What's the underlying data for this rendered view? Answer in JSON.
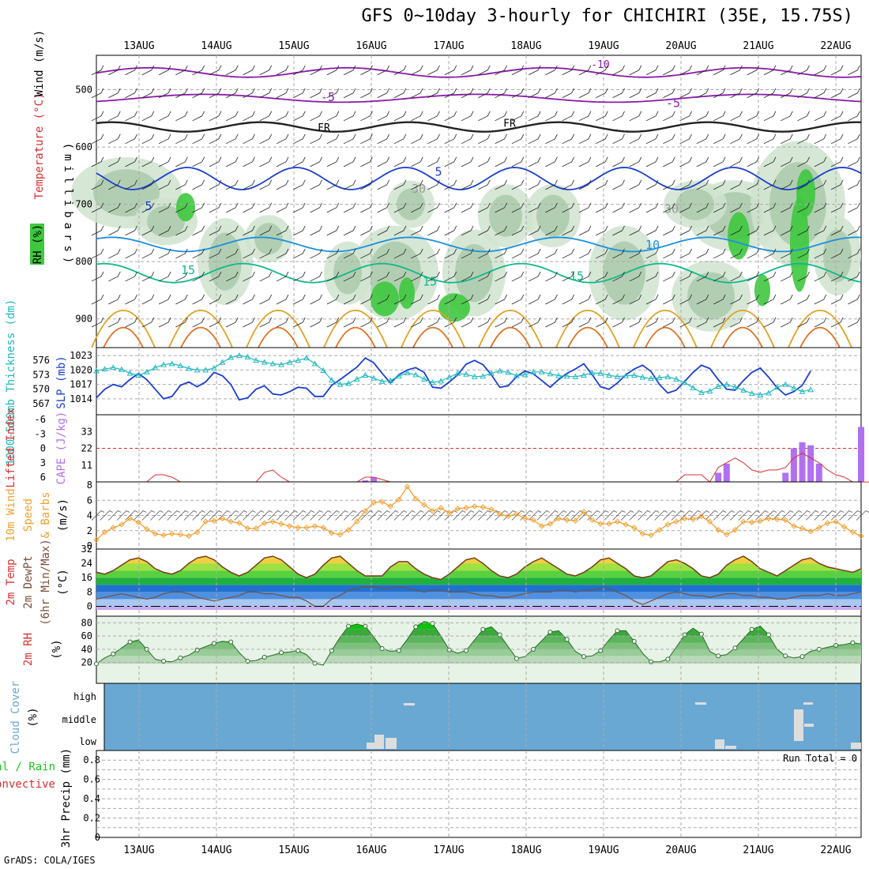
{
  "title": "GFS 0~10day 3-hourly for CHICHIRI (35E, 15.75S)",
  "credit": "GrADS: COLA/IGES",
  "colors": {
    "temp_warm": "#e07020",
    "temp_hot": "#e0a020",
    "rh_green": "#20c020",
    "slp": "#1a3fd0",
    "thickness": "#20b8c0",
    "cape": "#b070f0",
    "li": "#d83030",
    "wind": "#f0a030",
    "dew": "#7a4f3a",
    "rh2m": "#3a9a3a",
    "cloud": "#6aa8d4"
  },
  "chart_data": [
    {
      "id": "upper-air",
      "type": "heatmap",
      "ylabel": "(millibars)",
      "y_ticks": [
        "500",
        "600",
        "700",
        "800",
        "900"
      ],
      "ylim": [
        950,
        440
      ],
      "legend_left": {
        "rh": "RH (%)",
        "temp": "Temperature (°C)",
        "wind": "Wind (m/s)"
      },
      "contour_labels": [
        "-10",
        "-5",
        "-5",
        "FR",
        "FR",
        "5",
        "5",
        "10",
        "15",
        "15",
        "15",
        "30",
        "30"
      ],
      "dates": [
        "13AUG",
        "14AUG",
        "15AUG",
        "16AUG",
        "17AUG",
        "18AUG",
        "19AUG",
        "20AUG",
        "21AUG",
        "22AUG"
      ]
    },
    {
      "id": "slp-thickness",
      "type": "line",
      "left_label": "1000-500mb Thickness (dm)",
      "right_label": "SLP (mb)",
      "left_ticks": [
        "567",
        "570",
        "573",
        "576"
      ],
      "right_ticks": [
        "1014",
        "1017",
        "1020",
        "1023"
      ],
      "series": [
        {
          "name": "SLP (mb)",
          "values": [
            1014.2,
            1016,
            1017,
            1016.5,
            1018,
            1019.3,
            1018,
            1016,
            1014,
            1014.5,
            1016.8,
            1017.5,
            1016.5,
            1017.5,
            1019.5,
            1018.8,
            1017,
            1013.8,
            1014.2,
            1016,
            1016.7,
            1015,
            1014.8,
            1015.5,
            1016.4,
            1016.2,
            1014.5,
            1014.5,
            1016.8,
            1018,
            1019.3,
            1020.6,
            1022.5,
            1021.5,
            1019.3,
            1017.3,
            1019,
            1020,
            1020.5,
            1019.5,
            1016.4,
            1016.2,
            1017.5,
            1019,
            1021.2,
            1022,
            1021.1,
            1019,
            1016.4,
            1016.7,
            1018.6,
            1019.8,
            1019.2,
            1017.8,
            1016.4,
            1018,
            1019.3,
            1020.2,
            1021.3,
            1019,
            1016.5,
            1016,
            1017.3,
            1019,
            1020.2,
            1021,
            1019.7,
            1017,
            1015.2,
            1015.8,
            1017.6,
            1019.5,
            1021,
            1020.3,
            1018,
            1016,
            1015.8,
            1017.8,
            1019.5,
            1020.4,
            1018.5,
            1016.3,
            1014.8,
            1015.5,
            1016.8,
            1019.8
          ]
        },
        {
          "name": "1000-500mb Thickness (dm)",
          "values": [
            573.8,
            574.2,
            574.5,
            574.1,
            573.3,
            572.9,
            573.6,
            574.5,
            575.1,
            575.3,
            574.9,
            574.3,
            574.0,
            574.0,
            574.4,
            575.6,
            576.6,
            577.0,
            576.7,
            576.0,
            575.6,
            575.3,
            575.1,
            575.6,
            576.0,
            576.5,
            575.3,
            573.9,
            571.9,
            571.0,
            571.2,
            572.1,
            572.9,
            572.3,
            571.6,
            571.8,
            572.7,
            573.4,
            573.0,
            572.1,
            571.4,
            571.7,
            572.5,
            573.3,
            573.1,
            572.6,
            572.7,
            573.3,
            573.8,
            573.5,
            572.8,
            573.0,
            573.6,
            573.6,
            573.2,
            572.8,
            572.7,
            572.6,
            572.9,
            573.4,
            573.3,
            572.9,
            572.6,
            572.8,
            572.9,
            572.5,
            572.2,
            572.4,
            572.6,
            572.1,
            571.4,
            570.3,
            569.3,
            569.6,
            570.6,
            571.0,
            570.4,
            569.8,
            569.1,
            568.8,
            569.2,
            570.4,
            571.0,
            570.2,
            569.5,
            569.9
          ]
        }
      ]
    },
    {
      "id": "cape-li",
      "type": "bar",
      "left_label": "Lifted Index",
      "right_label": "CAPE (J/kg)",
      "left_ticks": [
        "-6",
        "-3",
        "0",
        "3",
        "6"
      ],
      "right_ticks": [
        "11",
        "22",
        "33"
      ],
      "series": [
        {
          "name": "CAPE (J/kg)",
          "values": [
            0,
            0,
            0,
            0,
            0,
            0,
            0,
            0,
            0,
            0,
            0,
            0,
            0,
            0,
            0,
            0,
            0,
            0,
            0,
            0,
            0,
            0,
            0,
            0,
            0,
            0,
            0,
            0,
            0,
            0,
            0,
            0,
            1,
            3,
            0,
            0,
            0,
            0,
            0,
            0,
            0,
            0,
            0,
            0,
            0,
            0,
            0,
            0,
            0,
            0,
            0,
            0,
            0,
            0,
            0,
            0,
            0,
            0,
            0,
            0,
            0,
            0,
            0,
            0,
            0,
            0,
            0,
            0,
            0,
            0,
            0,
            0,
            0,
            0,
            6,
            12,
            0,
            0,
            0,
            0,
            0,
            0,
            6,
            22,
            26,
            24,
            12,
            0,
            0,
            0,
            0,
            36
          ]
        },
        {
          "name": "Lifted Index",
          "values": [
            7,
            7,
            7,
            7,
            7,
            7,
            7,
            5.5,
            5.5,
            6,
            7,
            7,
            7,
            7,
            7,
            7,
            7,
            7,
            7,
            7,
            5,
            4.5,
            6,
            7,
            7,
            7,
            7,
            7,
            7,
            7,
            7,
            7,
            6,
            6,
            6.5,
            7,
            7,
            7,
            7,
            7,
            7,
            7,
            7,
            7,
            7,
            7,
            7,
            7,
            7,
            7,
            7,
            7,
            7,
            7,
            7,
            7,
            7,
            7,
            7,
            7,
            7,
            7,
            7,
            7,
            7,
            7,
            7,
            7,
            7,
            7,
            5.5,
            5.5,
            5.5,
            7,
            4,
            3,
            2,
            3,
            4.5,
            5,
            4.5,
            4.5,
            4,
            2,
            1,
            2,
            3,
            4.5,
            5.5,
            6,
            7,
            7,
            7,
            4
          ]
        }
      ]
    },
    {
      "id": "wind10m",
      "type": "line",
      "left_label": "10m Wind Speed & Barbs (m/s)",
      "y_ticks": [
        "0",
        "2",
        "4",
        "6",
        "8"
      ],
      "series": [
        {
          "name": "10m Wind Speed",
          "values": [
            0.8,
            1.8,
            2.4,
            2.8,
            3.6,
            3.1,
            2.2,
            1.6,
            1.4,
            1.6,
            1.5,
            1.3,
            1.8,
            3.2,
            3.3,
            3.6,
            3.2,
            3.0,
            2.3,
            2.3,
            3.0,
            3.2,
            2.9,
            2.6,
            2.4,
            2.4,
            2.6,
            2.4,
            1.7,
            1.5,
            2.1,
            3.2,
            4.6,
            5.7,
            5.8,
            5.2,
            6.1,
            7.8,
            6.2,
            5.4,
            4.6,
            5.0,
            4.3,
            4.9,
            5.0,
            5.2,
            5.1,
            4.8,
            4.2,
            3.9,
            4.2,
            3.6,
            3.4,
            2.6,
            2.9,
            3.6,
            3.4,
            3.3,
            4.5,
            3.4,
            2.9,
            2.9,
            3.2,
            2.8,
            2.4,
            1.6,
            1.4,
            2.1,
            2.8,
            3.2,
            3.6,
            3.5,
            3.9,
            3.2,
            2.1,
            1.5,
            2.1,
            3.2,
            3.1,
            3.3,
            3.6,
            3.5,
            3.4,
            2.6,
            2.3,
            1.9,
            2.4,
            3.0,
            3.2,
            2.5,
            1.8,
            1.3
          ]
        }
      ]
    },
    {
      "id": "temp2m",
      "type": "area",
      "left_label": "2m Temp 2m DewPt (6hr Min/Max) (°C)",
      "y_ticks": [
        "0",
        "8",
        "16",
        "24",
        "32"
      ],
      "series": [
        {
          "name": "2m Temp",
          "values": [
            19,
            18,
            20,
            23,
            26,
            27,
            25,
            21,
            19,
            18,
            20,
            24,
            27,
            28,
            26,
            22,
            19,
            17,
            19,
            23,
            27,
            28,
            26,
            22,
            18,
            16,
            18,
            23,
            27,
            28,
            24,
            20,
            17,
            17,
            17,
            22,
            25,
            25,
            21,
            18,
            16,
            15,
            18,
            22,
            26,
            27,
            24,
            20,
            17,
            16,
            18,
            22,
            25,
            27,
            24,
            21,
            18,
            17,
            19,
            22,
            26,
            27,
            24,
            21,
            17,
            16,
            17,
            21,
            25,
            26,
            24,
            21,
            17,
            16,
            18,
            23,
            26,
            28,
            25,
            21,
            19,
            17,
            20,
            23,
            26,
            27,
            24,
            22,
            21,
            20,
            19,
            21
          ]
        },
        {
          "name": "2m DewPt",
          "values": [
            4,
            5,
            6,
            7,
            6,
            5,
            4,
            5,
            7,
            8,
            8,
            7,
            5,
            4,
            3,
            4,
            5,
            6,
            8,
            8,
            7,
            7,
            6,
            5,
            5,
            3,
            0,
            0,
            4,
            6,
            9,
            10,
            11,
            11,
            10,
            10,
            11,
            10,
            9,
            8,
            9,
            9,
            8,
            8,
            8,
            7,
            6,
            6,
            5,
            5,
            6,
            7,
            8,
            8,
            8,
            9,
            9,
            8,
            9,
            9,
            10,
            10,
            8,
            6,
            3,
            1,
            3,
            5,
            7,
            8,
            7,
            6,
            6,
            5,
            6,
            7,
            7,
            6,
            6,
            5,
            5,
            4,
            4,
            5,
            6,
            6,
            6,
            7,
            6,
            6,
            7,
            8
          ]
        }
      ]
    },
    {
      "id": "rh2m",
      "type": "area",
      "left_label": "2m RH (%)",
      "y_ticks": [
        "20",
        "40",
        "60",
        "80"
      ],
      "series": [
        {
          "name": "2m RH",
          "values": [
            18,
            27,
            33,
            42,
            51,
            54,
            40,
            25,
            22,
            21,
            27,
            31,
            39,
            44,
            49,
            52,
            51,
            35,
            22,
            23,
            28,
            31,
            35,
            36,
            38,
            32,
            19,
            16,
            38,
            58,
            75,
            78,
            75,
            59,
            41,
            37,
            38,
            55,
            74,
            82,
            79,
            60,
            39,
            34,
            38,
            54,
            70,
            74,
            62,
            44,
            26,
            29,
            40,
            53,
            66,
            68,
            55,
            37,
            29,
            30,
            38,
            54,
            68,
            68,
            52,
            34,
            21,
            21,
            25,
            43,
            62,
            72,
            63,
            37,
            30,
            32,
            42,
            56,
            70,
            75,
            62,
            40,
            30,
            27,
            29,
            37,
            40,
            43,
            46,
            47,
            50,
            48
          ]
        }
      ]
    },
    {
      "id": "cloud",
      "type": "heatmap",
      "left_label": "Cloud Cover (%)",
      "levels": [
        "high",
        "middle",
        "low"
      ]
    },
    {
      "id": "precip",
      "type": "bar",
      "left_label": "Total / Rain Convective",
      "ylabel": "3hr Precip (mm)",
      "y_ticks": [
        "0",
        "0.2",
        "0.4",
        "0.6",
        "0.8"
      ],
      "annotation": "Run Total = 0",
      "dates": [
        "13AUG",
        "14AUG",
        "15AUG",
        "16AUG",
        "17AUG",
        "18AUG",
        "19AUG",
        "20AUG",
        "21AUG",
        "22AUG"
      ]
    }
  ]
}
